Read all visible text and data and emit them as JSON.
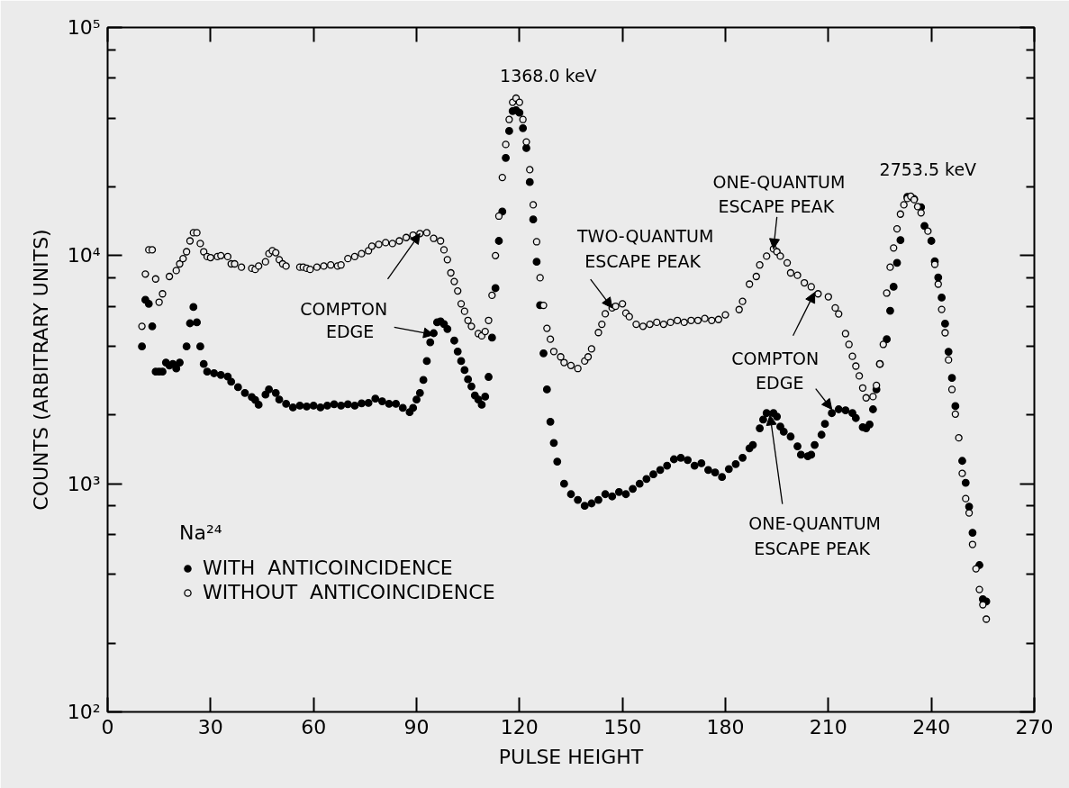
{
  "chart_data": {
    "type": "scatter",
    "xlabel": "PULSE HEIGHT",
    "ylabel": "COUNTS (ARBITRARY UNITS)",
    "legend_title": "Na²⁴",
    "log": "y",
    "xlim": [
      0,
      270
    ],
    "ylim": [
      100,
      100000
    ],
    "xticks": [
      0,
      30,
      60,
      90,
      120,
      150,
      180,
      210,
      240,
      270
    ],
    "yticks": [
      {
        "value": 100,
        "label": "10²"
      },
      {
        "value": 200,
        "label": null
      },
      {
        "value": 400,
        "label": null
      },
      {
        "value": 600,
        "label": null
      },
      {
        "value": 800,
        "label": null
      },
      {
        "value": 1000,
        "label": "10³"
      },
      {
        "value": 2000,
        "label": null
      },
      {
        "value": 4000,
        "label": null
      },
      {
        "value": 6000,
        "label": null
      },
      {
        "value": 8000,
        "label": null
      },
      {
        "value": 10000,
        "label": "10⁴"
      },
      {
        "value": 20000,
        "label": null
      },
      {
        "value": 40000,
        "label": null
      },
      {
        "value": 60000,
        "label": null
      },
      {
        "value": 80000,
        "label": null
      },
      {
        "value": 100000,
        "label": "10⁵"
      }
    ],
    "grid": false,
    "legend": "bottom left",
    "marker": "circle",
    "series": [
      {
        "name": "WITH  ANTICOINCIDENCE",
        "color": "#000000",
        "x": [
          10,
          11,
          12,
          13,
          14,
          15,
          16,
          17,
          18,
          19,
          20,
          21,
          23,
          24,
          25,
          26,
          27,
          28,
          29,
          31,
          33,
          35,
          36,
          38,
          40,
          42,
          43,
          44,
          46,
          47,
          49,
          50,
          52,
          54,
          56,
          58,
          60,
          62,
          64,
          66,
          68,
          70,
          72,
          74,
          76,
          78,
          80,
          82,
          84,
          86,
          88,
          89,
          90,
          91,
          92,
          93,
          94,
          95,
          96,
          97,
          98,
          99,
          101,
          102,
          103,
          104,
          105,
          106,
          107,
          108,
          109,
          110,
          111,
          112,
          113,
          114,
          115,
          116,
          117,
          118,
          119,
          120,
          121,
          122,
          123,
          124,
          125,
          126,
          127,
          128,
          129,
          130,
          131,
          133,
          135,
          137,
          139,
          141,
          143,
          145,
          147,
          149,
          151,
          153,
          155,
          157,
          159,
          161,
          163,
          165,
          167,
          169,
          171,
          173,
          175,
          177,
          179,
          181,
          183,
          185,
          187,
          188,
          190,
          191,
          192,
          194,
          195,
          196,
          197,
          199,
          201,
          202,
          204,
          205,
          206,
          208,
          209,
          211,
          213,
          215,
          217,
          218,
          220,
          221,
          222,
          223,
          224,
          225,
          227,
          228,
          229,
          230,
          231,
          233,
          235,
          237,
          238,
          240,
          241,
          242,
          243,
          244,
          245,
          246,
          247,
          249,
          250,
          251,
          252,
          254,
          255,
          256
        ],
        "values": [
          4000,
          6400,
          6150,
          4900,
          3100,
          3100,
          3100,
          3400,
          3300,
          3350,
          3200,
          3400,
          4000,
          5050,
          5950,
          5100,
          4000,
          3350,
          3100,
          3050,
          3000,
          2950,
          2800,
          2650,
          2500,
          2400,
          2330,
          2220,
          2460,
          2590,
          2500,
          2340,
          2240,
          2160,
          2200,
          2180,
          2200,
          2160,
          2200,
          2230,
          2200,
          2230,
          2200,
          2250,
          2260,
          2360,
          2300,
          2240,
          2240,
          2150,
          2060,
          2150,
          2340,
          2500,
          2850,
          3450,
          4170,
          4570,
          5100,
          5150,
          5010,
          4770,
          4240,
          3800,
          3450,
          3150,
          2870,
          2670,
          2440,
          2340,
          2220,
          2410,
          2940,
          4370,
          7200,
          11600,
          15600,
          26800,
          35200,
          43000,
          43400,
          42300,
          36200,
          29600,
          21000,
          14400,
          9400,
          6060,
          3730,
          2590,
          1870,
          1510,
          1250,
          1000,
          900,
          850,
          800,
          820,
          850,
          900,
          880,
          920,
          900,
          950,
          1000,
          1050,
          1100,
          1150,
          1200,
          1280,
          1300,
          1270,
          1200,
          1230,
          1150,
          1120,
          1070,
          1160,
          1220,
          1300,
          1430,
          1480,
          1750,
          1910,
          2040,
          2040,
          1970,
          1780,
          1690,
          1610,
          1460,
          1340,
          1320,
          1340,
          1480,
          1640,
          1830,
          2040,
          2120,
          2100,
          2040,
          1940,
          1770,
          1750,
          1820,
          2120,
          2590,
          3350,
          4300,
          5730,
          7300,
          9300,
          11700,
          18100,
          17700,
          16300,
          13500,
          11600,
          9440,
          8020,
          6550,
          5030,
          3790,
          2910,
          2190,
          1260,
          1010,
          794,
          610,
          440,
          312,
          305
        ]
      },
      {
        "name": "WITHOUT  ANTICOINCIDENCE",
        "color": "#000000",
        "x": [
          10,
          11,
          12,
          13,
          14,
          15,
          16,
          18,
          20,
          21,
          22,
          23,
          24,
          25,
          26,
          27,
          28,
          29,
          30,
          32,
          33,
          35,
          36,
          37,
          39,
          42,
          43,
          44,
          46,
          47,
          48,
          49,
          50,
          51,
          52,
          56,
          57,
          58,
          59,
          61,
          63,
          65,
          67,
          68,
          70,
          72,
          74,
          76,
          77,
          79,
          81,
          83,
          85,
          87,
          89,
          91,
          93,
          95,
          97,
          98,
          99,
          100,
          101,
          102,
          103,
          104,
          105,
          106,
          108,
          109,
          110,
          111,
          112,
          113,
          114,
          115,
          116,
          117,
          118,
          119,
          120,
          121,
          122,
          123,
          124,
          125,
          126,
          127,
          128,
          129,
          130,
          132,
          133,
          135,
          137,
          139,
          140,
          141,
          143,
          144,
          145,
          147,
          148,
          150,
          151,
          152,
          154,
          156,
          158,
          160,
          162,
          164,
          166,
          168,
          170,
          172,
          174,
          176,
          178,
          180,
          184,
          185,
          187,
          189,
          190,
          192,
          194,
          195,
          196,
          198,
          199,
          201,
          203,
          205,
          207,
          210,
          212,
          213,
          215,
          216,
          217,
          218,
          219,
          220,
          221,
          223,
          224,
          225,
          226,
          227,
          228,
          229,
          230,
          231,
          232,
          233,
          234,
          235,
          236,
          237,
          239,
          241,
          242,
          243,
          244,
          245,
          246,
          247,
          248,
          249,
          250,
          251,
          252,
          253,
          254,
          255,
          256
        ],
        "values": [
          4900,
          8300,
          10600,
          10600,
          7900,
          6250,
          6800,
          8100,
          8600,
          9200,
          9700,
          10400,
          11600,
          12600,
          12600,
          11300,
          10400,
          9900,
          9800,
          9900,
          10000,
          9900,
          9200,
          9200,
          8900,
          8800,
          8700,
          9000,
          9400,
          10200,
          10500,
          10300,
          9600,
          9200,
          9000,
          8900,
          8900,
          8800,
          8700,
          8900,
          9000,
          9100,
          9000,
          9100,
          9700,
          9900,
          10200,
          10500,
          11000,
          11200,
          11400,
          11300,
          11600,
          12000,
          12300,
          12500,
          12600,
          11900,
          11600,
          10600,
          9600,
          8400,
          7700,
          7000,
          6150,
          5700,
          5200,
          4900,
          4550,
          4450,
          4650,
          5200,
          6700,
          10000,
          14900,
          22000,
          30700,
          39500,
          47000,
          49000,
          47000,
          39500,
          31500,
          23800,
          16700,
          11500,
          8000,
          6050,
          4800,
          4300,
          3800,
          3600,
          3400,
          3300,
          3200,
          3450,
          3600,
          3900,
          4600,
          5000,
          5560,
          5900,
          6000,
          6150,
          5600,
          5400,
          5000,
          4900,
          5000,
          5100,
          5000,
          5100,
          5200,
          5100,
          5200,
          5200,
          5300,
          5200,
          5250,
          5500,
          5800,
          6300,
          7500,
          8100,
          9100,
          9950,
          10700,
          10400,
          9950,
          9300,
          8400,
          8200,
          7600,
          7300,
          6800,
          6600,
          5900,
          5550,
          4550,
          4080,
          3620,
          3280,
          2970,
          2630,
          2380,
          2410,
          2700,
          3350,
          4080,
          6850,
          8900,
          10800,
          13100,
          15200,
          16700,
          17800,
          18200,
          17600,
          16400,
          15400,
          12800,
          9160,
          7500,
          5810,
          4590,
          3490,
          2590,
          2020,
          1590,
          1110,
          861,
          745,
          542,
          424,
          344,
          295,
          255
        ]
      }
    ],
    "annotations": [
      {
        "text": "1368.0 keV",
        "x": 119,
        "y": 49000
      },
      {
        "text": "2753.5 keV",
        "x": 234,
        "y": 18200
      },
      {
        "text": "TWO-QUANTUM\nESCAPE  PEAK",
        "x": 147,
        "y": 5900
      },
      {
        "text": "ONE-QUANTUM\nESCAPE  PEAK",
        "x": 194,
        "y": 10700
      },
      {
        "text": "COMPTON",
        "x": 91,
        "y": 12500
      },
      {
        "text": "EDGE",
        "x": 95,
        "y": 4500
      },
      {
        "text": "COMPTON",
        "x": 206,
        "y": 6900
      },
      {
        "text": "EDGE",
        "x": 211,
        "y": 2120
      },
      {
        "text": "ONE-QUANTUM\nESCAPE  PEAK",
        "x": 193,
        "y": 2000
      }
    ]
  }
}
